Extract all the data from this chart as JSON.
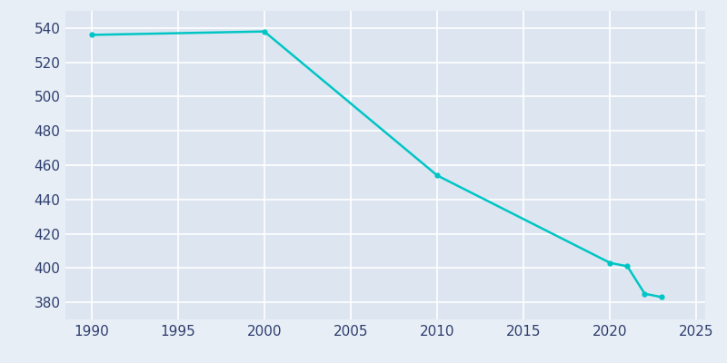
{
  "years": [
    1990,
    2000,
    2010,
    2020,
    2021,
    2022,
    2023
  ],
  "population": [
    536,
    538,
    454,
    403,
    401,
    385,
    383
  ],
  "line_color": "#00C5C5",
  "background_color": "#E8EEF6",
  "plot_background_color": "#DDE6F0",
  "grid_color": "#FFFFFF",
  "tick_color": "#2E3E6E",
  "xlim": [
    1988.5,
    2025.5
  ],
  "ylim": [
    370,
    550
  ],
  "xticks": [
    1990,
    1995,
    2000,
    2005,
    2010,
    2015,
    2020,
    2025
  ],
  "yticks": [
    380,
    400,
    420,
    440,
    460,
    480,
    500,
    520,
    540
  ],
  "linewidth": 1.8,
  "marker": "o",
  "marker_size": 3.5,
  "tick_fontsize": 11
}
